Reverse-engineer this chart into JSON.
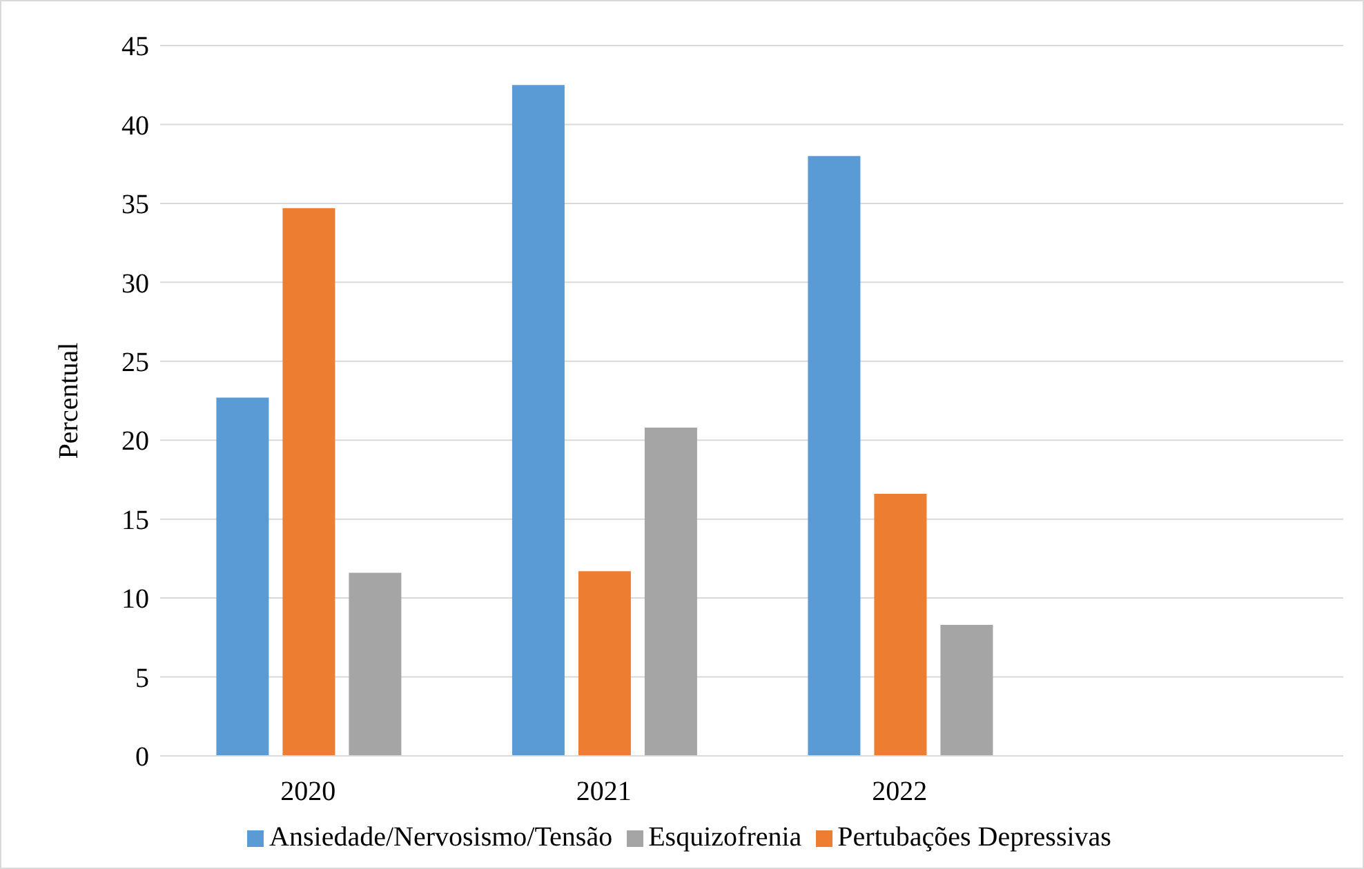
{
  "chart_data": {
    "type": "bar",
    "ylabel": "Percentual",
    "categories": [
      "2020",
      "2021",
      "2022",
      null
    ],
    "series": [
      {
        "name": "Ansiedade/Nervosismo/Tensão",
        "color": "#5b9bd5",
        "values": [
          22.7,
          42.5,
          38.0,
          null
        ]
      },
      {
        "name": "Pertubações Depressivas",
        "color": "#ed7d31",
        "values": [
          34.7,
          11.7,
          16.6,
          null
        ]
      },
      {
        "name": "Esquizofrenia",
        "color": "#a5a5a5",
        "values": [
          11.6,
          20.8,
          8.3,
          null
        ]
      }
    ],
    "ylim": [
      0,
      45
    ],
    "yticks": [
      0,
      5,
      10,
      15,
      20,
      25,
      30,
      35,
      40,
      45
    ],
    "grid": "y",
    "legend": "bottom"
  }
}
